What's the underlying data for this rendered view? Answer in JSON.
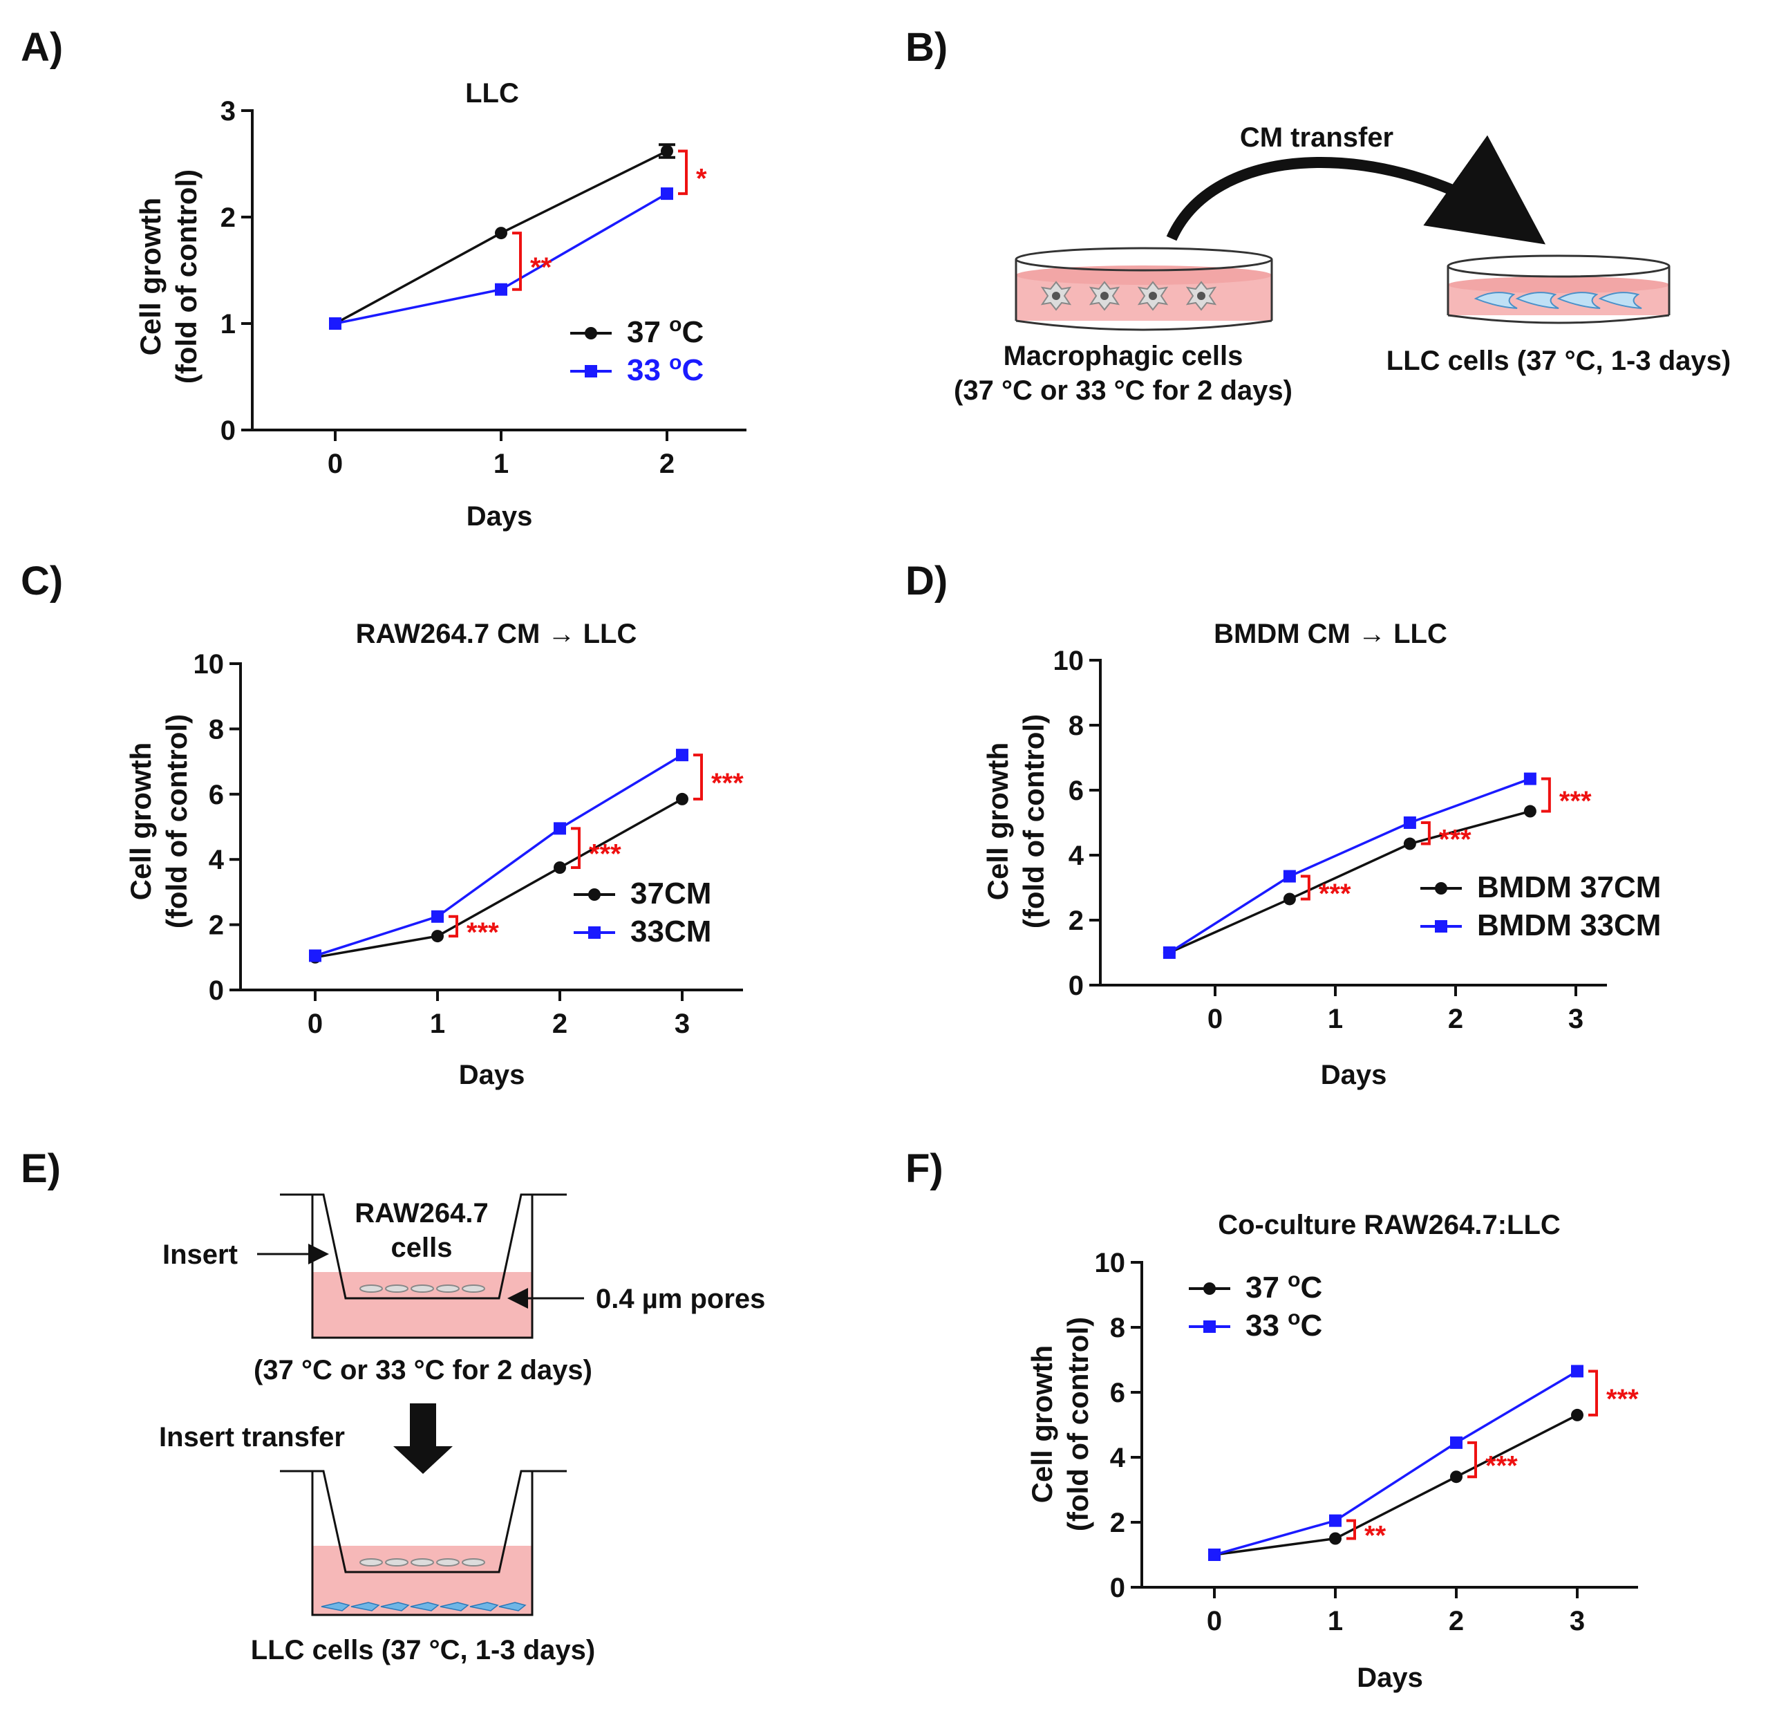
{
  "colors": {
    "black": "#111111",
    "blue": "#1a1aff",
    "red": "#ee1111",
    "pink": "#f6b8b8",
    "cellGray": "#9a9a9a",
    "cellBlue": "#6fb6e6"
  },
  "panel_labels": {
    "A": "A)",
    "B": "B)",
    "C": "C)",
    "D": "D)",
    "E": "E)",
    "F": "F)"
  },
  "diagram_b": {
    "arrow_label": "CM transfer",
    "left_line1": "Macrophagic cells",
    "left_line2": "(37 °C or 33 °C for 2 days)",
    "right_label": "LLC cells (37 °C, 1-3 days)"
  },
  "diagram_e": {
    "cells_line1": "RAW264.7",
    "cells_line2": "cells",
    "insert_label": "Insert",
    "pores_label": "0.4 µm pores",
    "condition_label": "(37 °C or 33 °C for 2 days)",
    "transfer_label": "Insert transfer",
    "bottom_label": "LLC cells (37 °C, 1-3 days)"
  },
  "chart_data": [
    {
      "id": "A",
      "type": "line",
      "title": "LLC",
      "xlabel": "Days",
      "ylabel1": "Cell growth",
      "ylabel2": "(fold of control)",
      "xticks": [
        "0",
        "1",
        "2"
      ],
      "yticks": [
        "0",
        "1",
        "2",
        "3"
      ],
      "ylim": [
        0,
        3
      ],
      "series": [
        {
          "name": "37 °C",
          "legend_base": "37 ",
          "legend_sup": "o",
          "legend_unit": "C",
          "marker": "circle",
          "color_key": "black",
          "x": [
            0,
            1,
            2
          ],
          "y": [
            1.0,
            1.85,
            2.62
          ],
          "err": [
            0,
            0,
            0.06
          ]
        },
        {
          "name": "33 °C",
          "legend_base": "33 ",
          "legend_sup": "o",
          "legend_unit": "C",
          "marker": "square",
          "color_key": "blue",
          "x": [
            0,
            1,
            2
          ],
          "y": [
            1.0,
            1.32,
            2.22
          ],
          "err": [
            0,
            0,
            0
          ]
        }
      ],
      "significance": [
        {
          "x": 1,
          "y_low": 1.32,
          "y_high": 1.85,
          "label": "**"
        },
        {
          "x": 2,
          "y_low": 2.22,
          "y_high": 2.62,
          "label": "*"
        }
      ]
    },
    {
      "id": "C",
      "type": "line",
      "title": "RAW264.7 CM → LLC",
      "xlabel": "Days",
      "ylabel1": "Cell growth",
      "ylabel2": "(fold of control)",
      "xticks": [
        "0",
        "1",
        "2",
        "3"
      ],
      "yticks": [
        "0",
        "2",
        "4",
        "6",
        "8",
        "10"
      ],
      "ylim": [
        0,
        10
      ],
      "series": [
        {
          "name": "37CM",
          "legend_base": "37CM",
          "marker": "circle",
          "color_key": "black",
          "x": [
            0,
            1,
            2,
            3
          ],
          "y": [
            1.0,
            1.65,
            3.75,
            5.85
          ]
        },
        {
          "name": "33CM",
          "legend_base": "33CM",
          "marker": "square",
          "color_key": "blue",
          "x": [
            0,
            1,
            2,
            3
          ],
          "y": [
            1.05,
            2.25,
            4.95,
            7.2
          ]
        }
      ],
      "significance": [
        {
          "x": 1,
          "y_low": 1.65,
          "y_high": 2.25,
          "label": "***"
        },
        {
          "x": 2,
          "y_low": 3.75,
          "y_high": 4.95,
          "label": "***"
        },
        {
          "x": 3,
          "y_low": 5.85,
          "y_high": 7.2,
          "label": "***"
        }
      ]
    },
    {
      "id": "D",
      "type": "line",
      "title": "BMDM CM → LLC",
      "xlabel": "Days",
      "ylabel1": "Cell growth",
      "ylabel2": "(fold of control)",
      "xticks": [
        "0",
        "1",
        "2",
        "3"
      ],
      "yticks": [
        "0",
        "2",
        "4",
        "6",
        "8",
        "10"
      ],
      "ylim": [
        0,
        10
      ],
      "series": [
        {
          "name": "BMDM 37CM",
          "legend_base": "BMDM 37CM",
          "marker": "circle",
          "color_key": "black",
          "x": [
            -0.38,
            0.62,
            1.62,
            2.62
          ],
          "y": [
            1.0,
            2.65,
            4.35,
            5.35
          ]
        },
        {
          "name": "BMDM 33CM",
          "legend_base": "BMDM 33CM",
          "marker": "square",
          "color_key": "blue",
          "x": [
            -0.38,
            0.62,
            1.62,
            2.62
          ],
          "y": [
            1.0,
            3.35,
            5.0,
            6.35
          ]
        }
      ],
      "significance": [
        {
          "x": 0.62,
          "y_low": 2.65,
          "y_high": 3.35,
          "label": "***"
        },
        {
          "x": 1.62,
          "y_low": 4.35,
          "y_high": 5.0,
          "label": "***"
        },
        {
          "x": 2.62,
          "y_low": 5.35,
          "y_high": 6.35,
          "label": "***"
        }
      ]
    },
    {
      "id": "F",
      "type": "line",
      "title": "Co-culture RAW264.7:LLC",
      "xlabel": "Days",
      "ylabel1": "Cell growth",
      "ylabel2": "(fold of control)",
      "xticks": [
        "0",
        "1",
        "2",
        "3"
      ],
      "yticks": [
        "0",
        "2",
        "4",
        "6",
        "8",
        "10"
      ],
      "ylim": [
        0,
        10
      ],
      "series": [
        {
          "name": "37 °C",
          "legend_base": "37 ",
          "legend_sup": "o",
          "legend_unit": "C",
          "marker": "circle",
          "color_key": "black",
          "x": [
            0,
            1,
            2,
            3
          ],
          "y": [
            1.0,
            1.5,
            3.4,
            5.3
          ]
        },
        {
          "name": "33 °C",
          "legend_base": "33 ",
          "legend_sup": "o",
          "legend_unit": "C",
          "marker": "square",
          "color_key": "blue",
          "x": [
            0,
            1,
            2,
            3
          ],
          "y": [
            1.0,
            2.05,
            4.45,
            6.65
          ]
        }
      ],
      "significance": [
        {
          "x": 1,
          "y_low": 1.5,
          "y_high": 2.05,
          "label": "**"
        },
        {
          "x": 2,
          "y_low": 3.4,
          "y_high": 4.45,
          "label": "***"
        },
        {
          "x": 3,
          "y_low": 5.3,
          "y_high": 6.65,
          "label": "***"
        }
      ]
    }
  ]
}
